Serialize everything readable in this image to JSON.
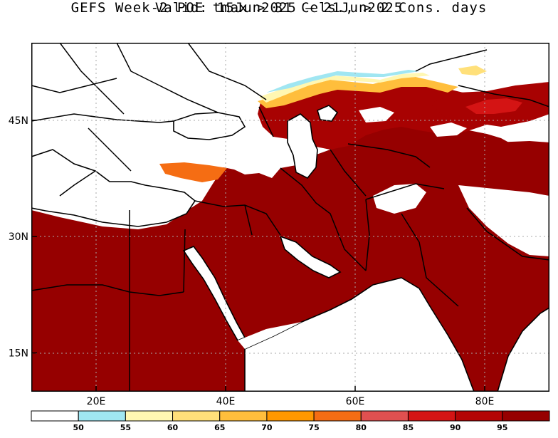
{
  "title": {
    "line1": "GEFS Week-2 POE tmax > 31 Cels., > 2 Cons. days",
    "line2": "Valid: 15Jun2025 – 21Jun2025"
  },
  "map": {
    "lat_ticks": [
      "45N",
      "30N",
      "15N"
    ],
    "lon_ticks": [
      "20E",
      "40E",
      "60E",
      "80E"
    ],
    "lon_range": [
      10,
      90
    ],
    "lat_range": [
      10,
      55
    ],
    "grid_color": "#aaaaaa"
  },
  "colorbar": {
    "colors": [
      "#ffffff",
      "#a0e6f2",
      "#fff7b2",
      "#ffe07a",
      "#ffbe3c",
      "#ff9800",
      "#f56d13",
      "#e05050",
      "#d41414",
      "#b40505",
      "#960000"
    ],
    "labels": [
      "50",
      "55",
      "60",
      "65",
      "70",
      "75",
      "80",
      "85",
      "90",
      "95"
    ]
  }
}
